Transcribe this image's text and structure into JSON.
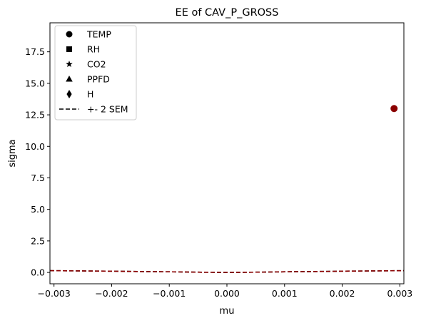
{
  "chart_data": {
    "type": "scatter",
    "title": "EE of CAV_P_GROSS",
    "xlabel": "mu",
    "ylabel": "sigma",
    "xlim": [
      -0.00307,
      0.00307
    ],
    "ylim": [
      -0.9,
      19.8
    ],
    "xticks": [
      -0.003,
      -0.002,
      -0.001,
      0.0,
      0.001,
      0.002,
      0.003
    ],
    "xtick_labels": [
      "−0.003",
      "−0.002",
      "−0.001",
      "0.000",
      "0.001",
      "0.002",
      "0.003"
    ],
    "yticks": [
      0.0,
      2.5,
      5.0,
      7.5,
      10.0,
      12.5,
      15.0,
      17.5
    ],
    "ytick_labels": [
      "0.0",
      "2.5",
      "5.0",
      "7.5",
      "10.0",
      "12.5",
      "15.0",
      "17.5"
    ],
    "grid": false,
    "legend_position": "top-left",
    "legend": [
      {
        "label": "TEMP",
        "marker": "circle"
      },
      {
        "label": "RH",
        "marker": "square"
      },
      {
        "label": "CO2",
        "marker": "star"
      },
      {
        "label": "PPFD",
        "marker": "triangle"
      },
      {
        "label": "H",
        "marker": "diamond"
      },
      {
        "label": "+- 2 SEM",
        "marker": "dashed-line"
      }
    ],
    "points": [
      {
        "series": "TEMP",
        "marker": "circle",
        "x": 0.0029,
        "y": 13.0,
        "color": "#8b0000"
      }
    ],
    "sem_curves": [
      {
        "color": "#000000",
        "x": [
          -0.00307,
          -0.0025,
          -0.002,
          -0.0015,
          -0.001,
          -0.0005,
          0.0,
          0.0005,
          0.001,
          0.0015,
          0.002,
          0.0025,
          0.00307
        ],
        "y": [
          0.14,
          0.12,
          0.1,
          0.07,
          0.05,
          0.02,
          0.0,
          0.02,
          0.05,
          0.07,
          0.1,
          0.12,
          0.14
        ]
      },
      {
        "color": "#8b0000",
        "x": [
          -0.00307,
          -0.0025,
          -0.002,
          -0.0015,
          -0.001,
          -0.0005,
          0.0,
          0.0005,
          0.001,
          0.0015,
          0.002,
          0.0025,
          0.00307
        ],
        "y": [
          0.14,
          0.12,
          0.1,
          0.07,
          0.05,
          0.02,
          0.0,
          0.02,
          0.05,
          0.07,
          0.1,
          0.12,
          0.14
        ]
      }
    ],
    "colors": {
      "point": "#8b0000",
      "sem_dark": "#000000",
      "sem_red": "#8b0000",
      "legend_marker": "#000000"
    }
  }
}
